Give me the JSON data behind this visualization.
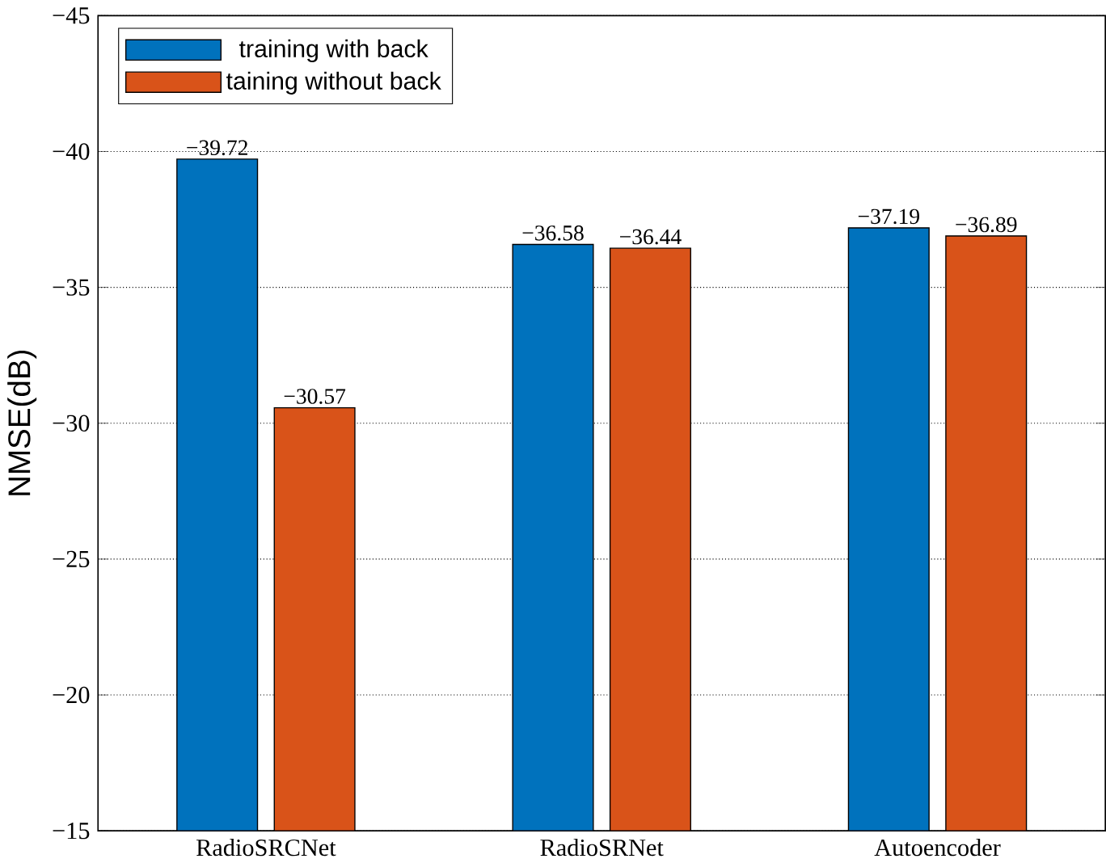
{
  "chart_data": {
    "type": "bar",
    "ylabel": "NMSE(dB)",
    "categories": [
      "RadioSRCNet",
      "RadioSRNet",
      "Autoencoder"
    ],
    "series": [
      {
        "name": "training with back",
        "color": "#0072bd",
        "values": [
          -39.72,
          -36.58,
          -37.19
        ],
        "value_labels": [
          "−39.72",
          "−36.58",
          "−37.19"
        ]
      },
      {
        "name": "taining without back",
        "color": "#d95319",
        "values": [
          -30.57,
          -36.44,
          -36.89
        ],
        "value_labels": [
          "−30.57",
          "−36.44",
          "−36.89"
        ]
      }
    ],
    "ylim": [
      -15,
      -45
    ],
    "yticks": [
      {
        "value": -45,
        "label": "−45"
      },
      {
        "value": -40,
        "label": "−40"
      },
      {
        "value": -35,
        "label": "−35"
      },
      {
        "value": -30,
        "label": "−30"
      },
      {
        "value": -25,
        "label": "−25"
      },
      {
        "value": -20,
        "label": "−20"
      },
      {
        "value": -15,
        "label": "−15"
      }
    ],
    "grid": "y",
    "legend": "top left"
  }
}
